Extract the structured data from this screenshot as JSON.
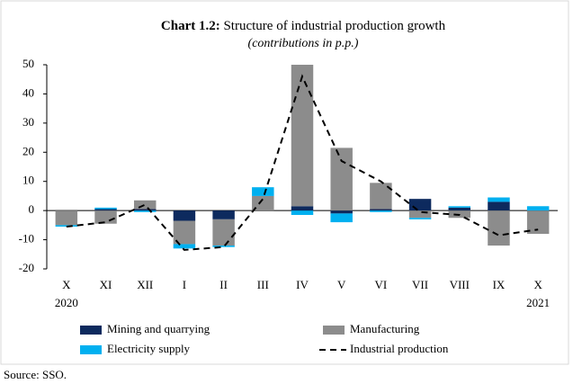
{
  "chart_data": {
    "type": "stacked_bar_line",
    "title_label": "Chart 1.2:",
    "title": "Structure of industrial production growth",
    "subtitle": "(contributions in p.p.)",
    "source": "Source: SSO.",
    "categories": [
      "X",
      "XI",
      "XII",
      "I",
      "II",
      "III",
      "IV",
      "V",
      "VI",
      "VII",
      "VIII",
      "IX",
      "X"
    ],
    "category_years": [
      "2020",
      null,
      null,
      null,
      null,
      null,
      null,
      null,
      null,
      null,
      null,
      null,
      "2021"
    ],
    "series": [
      {
        "name": "Mining and quarrying",
        "kind": "bar",
        "color": "#0d2a5e",
        "values": [
          0,
          0.5,
          0.5,
          -3.5,
          -3,
          0,
          1.5,
          -1,
          0.5,
          4,
          1,
          3,
          0
        ]
      },
      {
        "name": "Manufacturing",
        "kind": "bar",
        "color": "#8c8c8c",
        "values": [
          -5,
          -4.5,
          3,
          -8,
          -9,
          5,
          48.5,
          21.5,
          9,
          -2.5,
          -2.5,
          -12,
          -8
        ]
      },
      {
        "name": "Electricity supply",
        "kind": "bar",
        "color": "#00b0f0",
        "values": [
          -0.5,
          0.5,
          -0.5,
          -1.5,
          -0.5,
          3,
          -1.5,
          -3,
          -0.5,
          -0.5,
          0.5,
          1.5,
          1.5
        ]
      },
      {
        "name": "Industrial production",
        "kind": "line",
        "color": "#000000",
        "values": [
          -5.5,
          -4,
          2,
          -13.5,
          -12.5,
          4,
          46,
          17,
          10,
          -0.5,
          -1.5,
          -8.5,
          -6.5
        ]
      }
    ],
    "ylim": [
      -20,
      50
    ],
    "yticks": [
      -20,
      -10,
      0,
      10,
      20,
      30,
      40,
      50
    ]
  }
}
